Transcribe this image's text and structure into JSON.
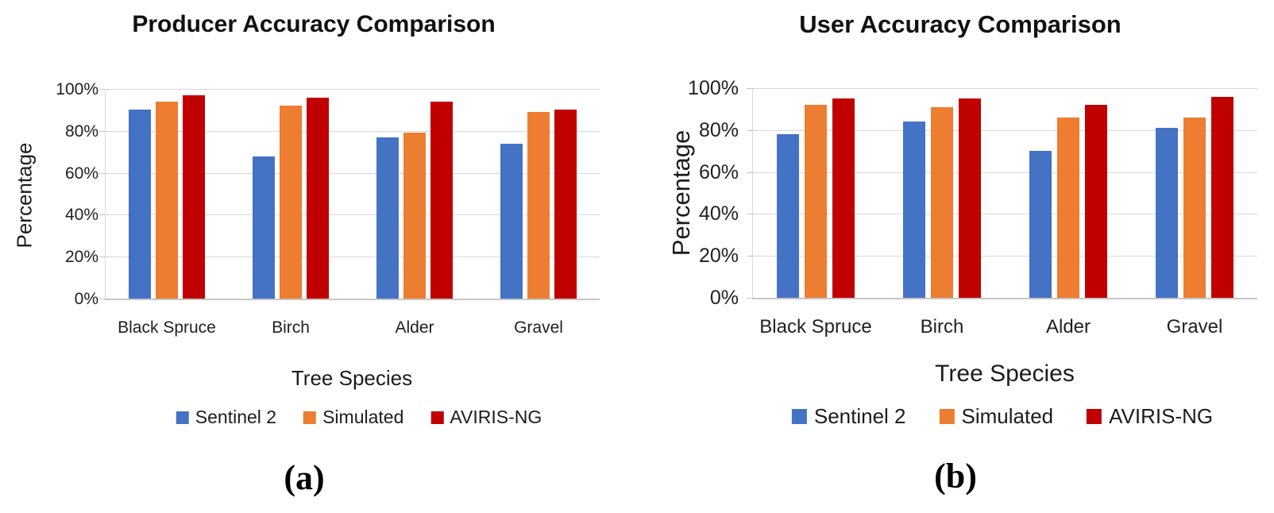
{
  "chart_data": [
    {
      "type": "bar",
      "panel": "a",
      "panel_label": "(a)",
      "title": "Producer Accuracy Comparison",
      "xlabel": "Tree Species",
      "ylabel": "Percentage",
      "categories": [
        "Black Spruce",
        "Birch",
        "Alder",
        "Gravel"
      ],
      "series": [
        {
          "name": "Sentinel 2",
          "color": "#4472C4",
          "values": [
            90,
            68,
            77,
            74
          ]
        },
        {
          "name": "Simulated",
          "color": "#ED7D31",
          "values": [
            94,
            92,
            79,
            89
          ]
        },
        {
          "name": "AVIRIS-NG",
          "color": "#C00000",
          "values": [
            97,
            96,
            94,
            90
          ]
        }
      ],
      "ylim": [
        0,
        100
      ],
      "yticks": [
        "0%",
        "20%",
        "40%",
        "60%",
        "80%",
        "100%"
      ],
      "grid": true,
      "legend_position": "bottom"
    },
    {
      "type": "bar",
      "panel": "b",
      "panel_label": "(b)",
      "title": "User Accuracy Comparison",
      "xlabel": "Tree Species",
      "ylabel": "Percentage",
      "categories": [
        "Black Spruce",
        "Birch",
        "Alder",
        "Gravel"
      ],
      "series": [
        {
          "name": "Sentinel 2",
          "color": "#4472C4",
          "values": [
            78,
            84,
            70,
            81
          ]
        },
        {
          "name": "Simulated",
          "color": "#ED7D31",
          "values": [
            92,
            91,
            86,
            86
          ]
        },
        {
          "name": "AVIRIS-NG",
          "color": "#C00000",
          "values": [
            95,
            95,
            92,
            96
          ]
        }
      ],
      "ylim": [
        0,
        100
      ],
      "yticks": [
        "0%",
        "20%",
        "40%",
        "60%",
        "80%",
        "100%"
      ],
      "grid": true,
      "legend_position": "bottom"
    }
  ],
  "colors": {
    "gridline": "#D9D9D9",
    "axis": "#C6C6C6",
    "text": "#212121",
    "title": "#111111"
  }
}
